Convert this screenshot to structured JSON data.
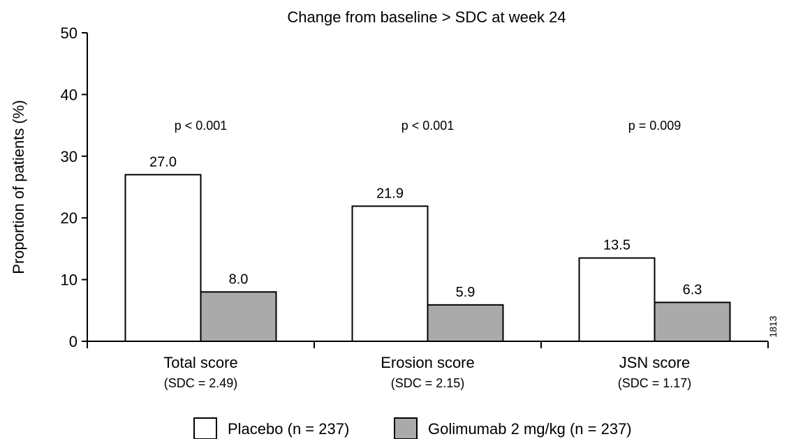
{
  "chart_data": {
    "type": "bar",
    "title": "Change from baseline > SDC at week 24",
    "ylabel": "Proportion of patients (%)",
    "xlabel": "",
    "ylim": [
      0,
      50
    ],
    "yticks": [
      "0",
      "10",
      "20",
      "30",
      "40",
      "50"
    ],
    "categories": [
      {
        "name": "Total score",
        "sub": "(SDC = 2.49)",
        "pvalue": "p < 0.001"
      },
      {
        "name": "Erosion score",
        "sub": "(SDC = 2.15)",
        "pvalue": "p < 0.001"
      },
      {
        "name": "JSN score",
        "sub": "(SDC = 1.17)",
        "pvalue": "p = 0.009"
      }
    ],
    "series": [
      {
        "name": "Placebo (n = 237)",
        "color": "#ffffff",
        "values": [
          27.0,
          21.9,
          13.5
        ],
        "labels": [
          "27.0",
          "21.9",
          "13.5"
        ]
      },
      {
        "name": "Golimumab 2 mg/kg (n = 237)",
        "color": "#aaaaaa",
        "values": [
          8.0,
          5.9,
          6.3
        ],
        "labels": [
          "8.0",
          "5.9",
          "6.3"
        ]
      }
    ],
    "legend_position": "bottom",
    "side_note": "1813",
    "grid": false
  }
}
